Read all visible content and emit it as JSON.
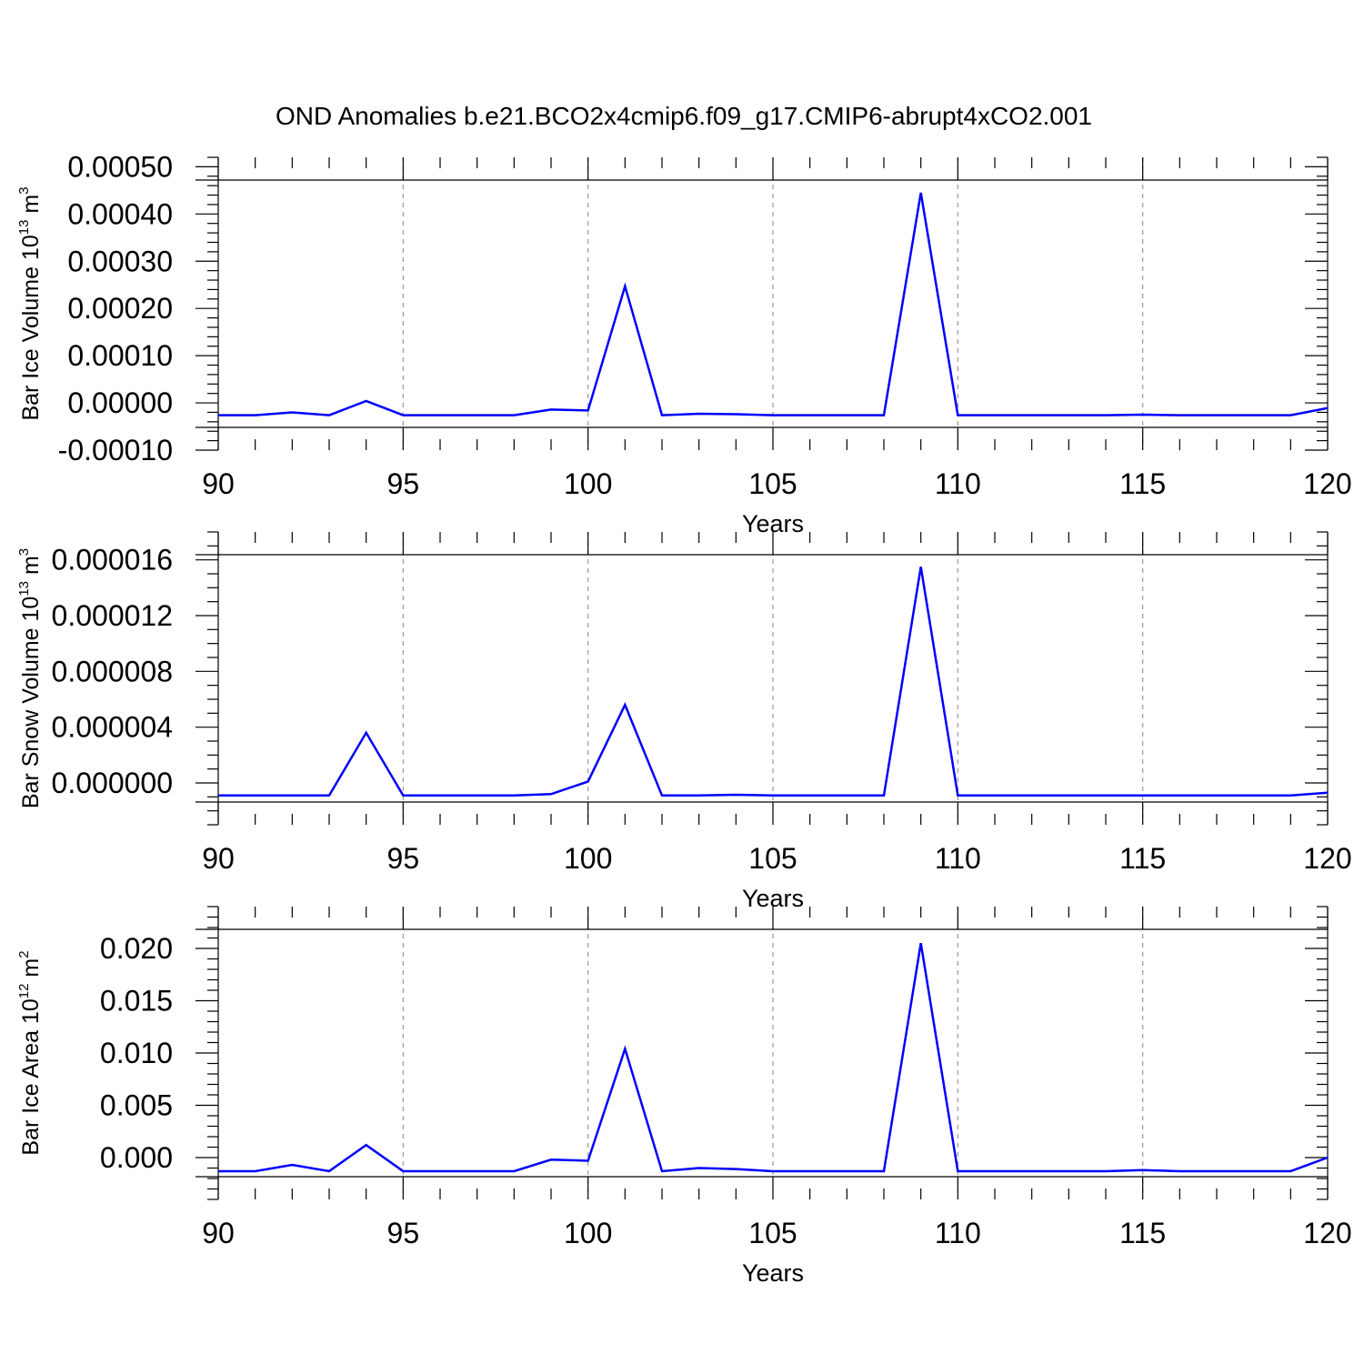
{
  "figure": {
    "title": "OND Anomalies b.e21.BCO2x4cmip6.f09_g17.CMIP6-abrupt4xCO2.001",
    "line_color": "#0000ff",
    "grid_color": "#999999"
  },
  "chart_data": [
    {
      "type": "line",
      "title": "",
      "xlabel": "Years",
      "ylabel": {
        "base": "Bar Ice Volume 10",
        "exp": "13",
        "unit": " m",
        "unit_exp": "3"
      },
      "xlim": [
        90,
        120
      ],
      "ylim": [
        -0.0001,
        0.00052
      ],
      "x_ticks": [
        90,
        95,
        100,
        105,
        110,
        115,
        120
      ],
      "x_tick_labels": [
        "90",
        "95",
        "100",
        "105",
        "110",
        "115",
        "120"
      ],
      "y_ticks": [
        -0.0001,
        0,
        0.0001,
        0.0002,
        0.0003,
        0.0004,
        0.0005
      ],
      "y_tick_labels": [
        "-0.00010",
        "0.00000",
        "0.00010",
        "0.00020",
        "0.00030",
        "0.00040",
        "0.00050"
      ],
      "y_minor_step": 2e-05,
      "grid_x": [
        95,
        100,
        105,
        110,
        115
      ],
      "x": [
        90,
        91,
        92,
        93,
        94,
        95,
        96,
        97,
        98,
        99,
        100,
        101,
        102,
        103,
        104,
        105,
        106,
        107,
        108,
        109,
        110,
        111,
        112,
        113,
        114,
        115,
        116,
        117,
        118,
        119,
        120
      ],
      "series": [
        {
          "values": [
            -2.6e-05,
            -2.6e-05,
            -2e-05,
            -2.6e-05,
            4e-06,
            -2.6e-05,
            -2.6e-05,
            -2.6e-05,
            -2.6e-05,
            -1.4e-05,
            -1.6e-05,
            0.000247,
            -2.6e-05,
            -2.3e-05,
            -2.4e-05,
            -2.6e-05,
            -2.6e-05,
            -2.6e-05,
            -2.6e-05,
            0.000445,
            -2.6e-05,
            -2.6e-05,
            -2.6e-05,
            -2.6e-05,
            -2.6e-05,
            -2.5e-05,
            -2.6e-05,
            -2.6e-05,
            -2.6e-05,
            -2.6e-05,
            -1.1e-05
          ]
        }
      ]
    },
    {
      "type": "line",
      "title": "",
      "xlabel": "Years",
      "ylabel": {
        "base": "Bar Snow Volume 10",
        "exp": "13",
        "unit": " m",
        "unit_exp": "3"
      },
      "xlim": [
        90,
        120
      ],
      "ylim": [
        -3e-06,
        1.8e-05
      ],
      "x_ticks": [
        90,
        95,
        100,
        105,
        110,
        115,
        120
      ],
      "x_tick_labels": [
        "90",
        "95",
        "100",
        "105",
        "110",
        "115",
        "120"
      ],
      "y_ticks": [
        0,
        4e-06,
        8e-06,
        1.2e-05,
        1.6e-05
      ],
      "y_tick_labels": [
        "0.000000",
        "0.000004",
        "0.000008",
        "0.000012",
        "0.000016"
      ],
      "y_minor_step": 1e-06,
      "grid_x": [
        95,
        100,
        105,
        110,
        115
      ],
      "x": [
        90,
        91,
        92,
        93,
        94,
        95,
        96,
        97,
        98,
        99,
        100,
        101,
        102,
        103,
        104,
        105,
        106,
        107,
        108,
        109,
        110,
        111,
        112,
        113,
        114,
        115,
        116,
        117,
        118,
        119,
        120
      ],
      "series": [
        {
          "values": [
            -9e-07,
            -9e-07,
            -9e-07,
            -9e-07,
            3.6e-06,
            -9e-07,
            -9e-07,
            -9e-07,
            -9e-07,
            -8e-07,
            1e-07,
            5.6e-06,
            -9e-07,
            -9e-07,
            -8.5e-07,
            -9e-07,
            -9e-07,
            -9e-07,
            -9e-07,
            1.55e-05,
            -9e-07,
            -9e-07,
            -9e-07,
            -9e-07,
            -9e-07,
            -9e-07,
            -9e-07,
            -9e-07,
            -9e-07,
            -9e-07,
            -7e-07
          ]
        }
      ]
    },
    {
      "type": "line",
      "title": "",
      "xlabel": "Years",
      "ylabel": {
        "base": "Bar Ice Area 10",
        "exp": "12",
        "unit": " m",
        "unit_exp": "2"
      },
      "xlim": [
        90,
        120
      ],
      "ylim": [
        -0.004,
        0.024
      ],
      "x_ticks": [
        90,
        95,
        100,
        105,
        110,
        115,
        120
      ],
      "x_tick_labels": [
        "90",
        "95",
        "100",
        "105",
        "110",
        "115",
        "120"
      ],
      "y_ticks": [
        0,
        0.005,
        0.01,
        0.015,
        0.02
      ],
      "y_tick_labels": [
        "0.000",
        "0.005",
        "0.010",
        "0.015",
        "0.020"
      ],
      "y_minor_step": 0.001,
      "grid_x": [
        95,
        100,
        105,
        110,
        115
      ],
      "x": [
        90,
        91,
        92,
        93,
        94,
        95,
        96,
        97,
        98,
        99,
        100,
        101,
        102,
        103,
        104,
        105,
        106,
        107,
        108,
        109,
        110,
        111,
        112,
        113,
        114,
        115,
        116,
        117,
        118,
        119,
        120
      ],
      "series": [
        {
          "values": [
            -0.0013,
            -0.0013,
            -0.0007,
            -0.0013,
            0.0012,
            -0.0013,
            -0.0013,
            -0.0013,
            -0.0013,
            -0.0002,
            -0.0003,
            0.0104,
            -0.0013,
            -0.001,
            -0.0011,
            -0.0013,
            -0.0013,
            -0.0013,
            -0.0013,
            0.0205,
            -0.0013,
            -0.0013,
            -0.0013,
            -0.0013,
            -0.0013,
            -0.0012,
            -0.0013,
            -0.0013,
            -0.0013,
            -0.0013,
            0.0
          ]
        }
      ]
    }
  ]
}
